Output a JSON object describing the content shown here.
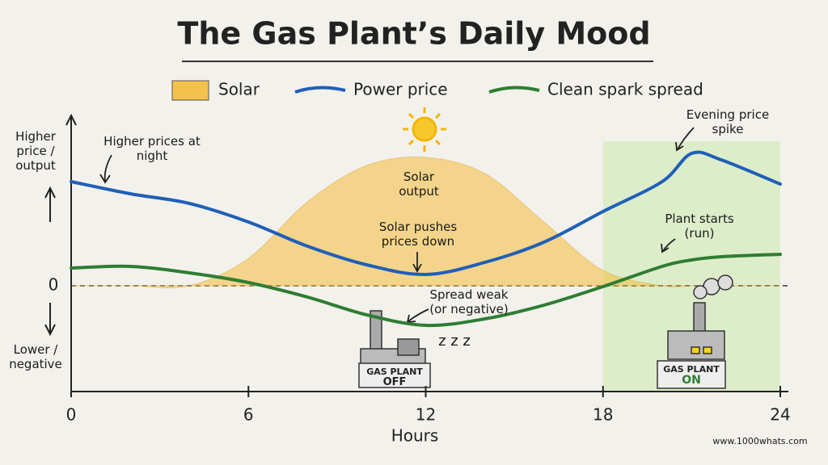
{
  "chart_data": {
    "type": "line",
    "title": "The Gas Plant’s Daily Mood",
    "x_label": "Hours",
    "y_label_top": "Higher price / output",
    "y_label_bottom": "Lower / negative",
    "x": [
      0,
      2,
      4,
      6,
      8,
      10,
      12,
      14,
      16,
      18,
      20,
      21,
      22,
      24
    ],
    "xlim": [
      0,
      24
    ],
    "xticks": [
      0,
      6,
      12,
      18,
      24
    ],
    "ylim": [
      -12,
      21
    ],
    "yticks": [
      0
    ],
    "zero_line": "dashed",
    "shaded_region": {
      "xlim": [
        18,
        24
      ],
      "color": "#d6ebbf"
    },
    "series": [
      {
        "name": "Solar",
        "kind": "area",
        "color": "#f3c24a",
        "values": [
          0,
          0,
          0,
          3.4,
          10.4,
          14.9,
          15.9,
          13.9,
          7.9,
          1.9,
          0,
          0,
          0,
          0
        ]
      },
      {
        "name": "Power price",
        "color": "#1f5fb8",
        "values": [
          12.9,
          11.4,
          10.2,
          7.9,
          4.9,
          2.6,
          1.4,
          2.9,
          5.4,
          9.2,
          12.9,
          16.4,
          15.6,
          12.6
        ]
      },
      {
        "name": "Clean spark spread",
        "color": "#2e7d32",
        "values": [
          2.2,
          2.4,
          1.6,
          0.4,
          -1.4,
          -3.6,
          -4.9,
          -4.1,
          -2.4,
          -0.1,
          2.4,
          3.2,
          3.6,
          3.9
        ]
      }
    ],
    "annotations": [
      "Higher prices at night",
      "Solar output",
      "Solar pushes prices down",
      "Spread weak (or negative)",
      "Evening price spike",
      "Plant starts (run)",
      "z z z"
    ],
    "plant_off": {
      "label": "GAS PLANT",
      "state": "OFF"
    },
    "plant_on": {
      "label": "GAS PLANT",
      "state": "ON"
    },
    "source": "www.1000whats.com"
  }
}
